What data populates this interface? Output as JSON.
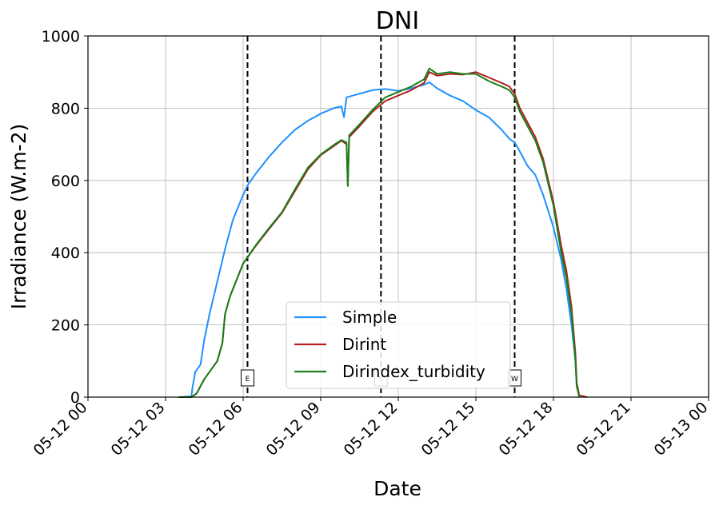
{
  "chart_data": {
    "type": "line",
    "title": "DNI",
    "xlabel": "Date",
    "ylabel": "Irradiance (W.m-2)",
    "x_ticks": [
      "05-12 00",
      "05-12 03",
      "05-12 06",
      "05-12 09",
      "05-12 12",
      "05-12 15",
      "05-12 18",
      "05-12 21",
      "05-13 00"
    ],
    "y_ticks": [
      0,
      200,
      400,
      600,
      800,
      1000
    ],
    "xlim_hours": [
      0,
      24
    ],
    "ylim": [
      0,
      1000
    ],
    "grid": true,
    "legend_position": "bottom-center",
    "markers": [
      {
        "label": "E",
        "hour": 6.17
      },
      {
        "label": "S",
        "hour": 11.33
      },
      {
        "label": "W",
        "hour": 16.5
      }
    ],
    "series": [
      {
        "name": "Simple",
        "color": "#1e90ff",
        "points": [
          [
            3.5,
            0
          ],
          [
            4.0,
            2
          ],
          [
            4.05,
            30
          ],
          [
            4.15,
            70
          ],
          [
            4.35,
            90
          ],
          [
            4.5,
            160
          ],
          [
            4.7,
            230
          ],
          [
            5.0,
            320
          ],
          [
            5.3,
            410
          ],
          [
            5.6,
            490
          ],
          [
            6.0,
            560
          ],
          [
            6.2,
            590
          ],
          [
            6.5,
            620
          ],
          [
            7.0,
            665
          ],
          [
            7.5,
            705
          ],
          [
            8.0,
            740
          ],
          [
            8.5,
            765
          ],
          [
            9.0,
            785
          ],
          [
            9.5,
            800
          ],
          [
            9.8,
            805
          ],
          [
            9.9,
            775
          ],
          [
            10.0,
            830
          ],
          [
            10.5,
            840
          ],
          [
            11.0,
            850
          ],
          [
            11.5,
            853
          ],
          [
            12.0,
            848
          ],
          [
            12.5,
            855
          ],
          [
            13.0,
            865
          ],
          [
            13.2,
            872
          ],
          [
            13.5,
            855
          ],
          [
            14.0,
            835
          ],
          [
            14.5,
            820
          ],
          [
            15.0,
            795
          ],
          [
            15.5,
            775
          ],
          [
            16.0,
            740
          ],
          [
            16.3,
            715
          ],
          [
            16.5,
            705
          ],
          [
            16.7,
            680
          ],
          [
            17.0,
            640
          ],
          [
            17.3,
            615
          ],
          [
            17.6,
            560
          ],
          [
            18.0,
            470
          ],
          [
            18.3,
            380
          ],
          [
            18.5,
            300
          ],
          [
            18.7,
            200
          ],
          [
            18.85,
            100
          ],
          [
            18.9,
            30
          ]
        ]
      },
      {
        "name": "Dirint",
        "color": "#b22222",
        "points": [
          [
            3.5,
            0
          ],
          [
            4.0,
            0
          ],
          [
            4.2,
            10
          ],
          [
            4.5,
            50
          ],
          [
            5.0,
            100
          ],
          [
            5.2,
            150
          ],
          [
            5.3,
            230
          ],
          [
            5.5,
            280
          ],
          [
            6.0,
            370
          ],
          [
            6.5,
            420
          ],
          [
            7.0,
            465
          ],
          [
            7.5,
            510
          ],
          [
            8.0,
            570
          ],
          [
            8.5,
            630
          ],
          [
            9.0,
            670
          ],
          [
            9.5,
            695
          ],
          [
            9.8,
            710
          ],
          [
            10.0,
            700
          ],
          [
            10.05,
            585
          ],
          [
            10.1,
            720
          ],
          [
            10.5,
            750
          ],
          [
            11.0,
            790
          ],
          [
            11.5,
            820
          ],
          [
            12.0,
            835
          ],
          [
            12.5,
            850
          ],
          [
            13.0,
            870
          ],
          [
            13.2,
            900
          ],
          [
            13.5,
            890
          ],
          [
            14.0,
            895
          ],
          [
            14.5,
            893
          ],
          [
            15.0,
            900
          ],
          [
            15.5,
            885
          ],
          [
            16.0,
            870
          ],
          [
            16.3,
            860
          ],
          [
            16.5,
            840
          ],
          [
            16.7,
            800
          ],
          [
            17.0,
            760
          ],
          [
            17.3,
            720
          ],
          [
            17.6,
            660
          ],
          [
            18.0,
            540
          ],
          [
            18.3,
            420
          ],
          [
            18.5,
            350
          ],
          [
            18.7,
            250
          ],
          [
            18.85,
            120
          ],
          [
            18.9,
            40
          ],
          [
            19.0,
            5
          ],
          [
            19.3,
            0
          ]
        ]
      },
      {
        "name": "Dirindex_turbidity",
        "color": "#1a7f1a",
        "points": [
          [
            3.5,
            0
          ],
          [
            4.0,
            0
          ],
          [
            4.2,
            10
          ],
          [
            4.5,
            50
          ],
          [
            5.0,
            100
          ],
          [
            5.2,
            150
          ],
          [
            5.3,
            230
          ],
          [
            5.5,
            280
          ],
          [
            6.0,
            370
          ],
          [
            6.5,
            422
          ],
          [
            7.0,
            468
          ],
          [
            7.5,
            512
          ],
          [
            8.0,
            575
          ],
          [
            8.5,
            635
          ],
          [
            9.0,
            672
          ],
          [
            9.5,
            698
          ],
          [
            9.8,
            712
          ],
          [
            10.0,
            705
          ],
          [
            10.05,
            585
          ],
          [
            10.1,
            725
          ],
          [
            10.5,
            755
          ],
          [
            11.0,
            795
          ],
          [
            11.5,
            830
          ],
          [
            12.0,
            845
          ],
          [
            12.5,
            860
          ],
          [
            13.0,
            880
          ],
          [
            13.2,
            910
          ],
          [
            13.5,
            895
          ],
          [
            14.0,
            900
          ],
          [
            14.5,
            895
          ],
          [
            15.0,
            895
          ],
          [
            15.5,
            875
          ],
          [
            16.0,
            860
          ],
          [
            16.3,
            850
          ],
          [
            16.5,
            830
          ],
          [
            16.7,
            790
          ],
          [
            17.0,
            750
          ],
          [
            17.3,
            710
          ],
          [
            17.6,
            650
          ],
          [
            18.0,
            530
          ],
          [
            18.3,
            400
          ],
          [
            18.5,
            330
          ],
          [
            18.7,
            230
          ],
          [
            18.85,
            100
          ],
          [
            18.9,
            30
          ],
          [
            19.0,
            0
          ]
        ]
      }
    ]
  }
}
